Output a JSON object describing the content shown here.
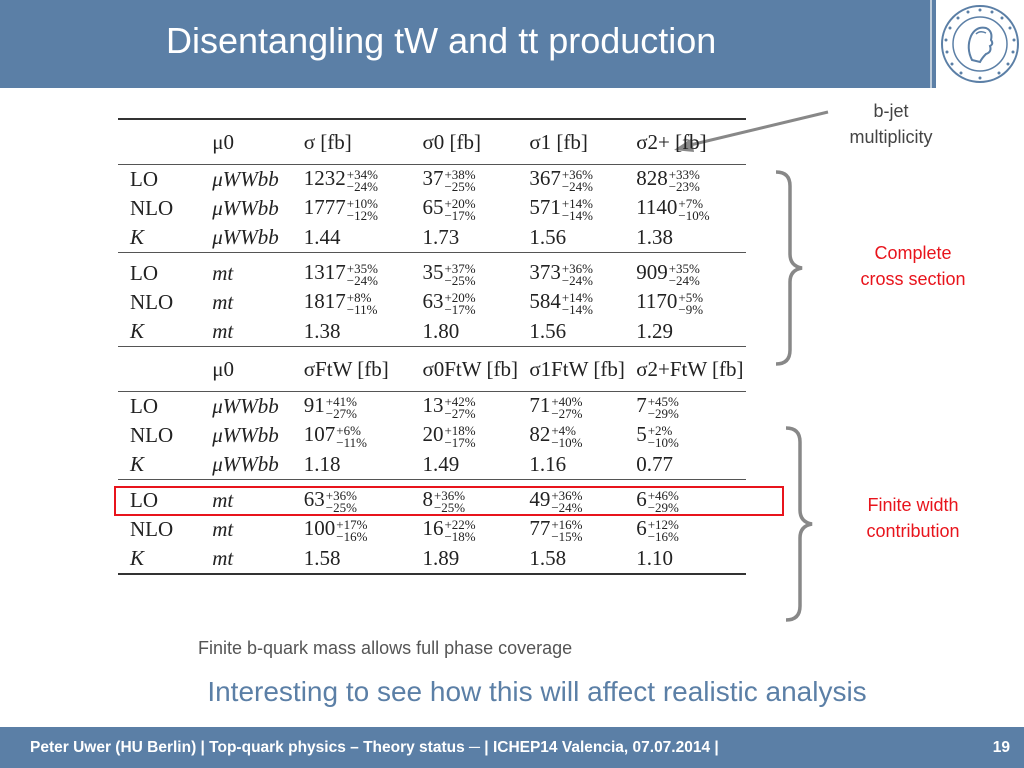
{
  "slide": {
    "title": "Disentangling tW and tt production",
    "annotations": {
      "bjet": [
        "b-jet",
        "multiplicity"
      ],
      "complete": [
        "Complete",
        "cross section"
      ],
      "finite": [
        "Finite width",
        "contribution"
      ]
    },
    "note": "Finite b-quark mass allows full phase coverage",
    "summary": "Interesting to see how this will affect realistic analysis",
    "footer": "Peter Uwer  (HU Berlin)  |  Top-quark physics – Theory status ─  |  ICHEP14 Valencia,  07.07.2014  |",
    "page": "19",
    "colors": {
      "header": "#5b7fa6",
      "accent_red": "#e8141c",
      "text": "#222222"
    }
  },
  "table": {
    "header1": [
      "",
      "μ0",
      "σ [fb]",
      "σ0 [fb]",
      "σ1 [fb]",
      "σ2+ [fb]"
    ],
    "header2": [
      "",
      "μ0",
      "σFtW [fb]",
      "σ0FtW [fb]",
      "σ1FtW [fb]",
      "σ2+FtW [fb]"
    ],
    "blocks": [
      {
        "rows": [
          {
            "order": "LO",
            "scale": "μWWbb",
            "cells": [
              {
                "v": "1232",
                "up": "+34%",
                "dn": "−24%"
              },
              {
                "v": "37",
                "up": "+38%",
                "dn": "−25%"
              },
              {
                "v": "367",
                "up": "+36%",
                "dn": "−24%"
              },
              {
                "v": "828",
                "up": "+33%",
                "dn": "−23%"
              }
            ]
          },
          {
            "order": "NLO",
            "scale": "μWWbb",
            "cells": [
              {
                "v": "1777",
                "up": "+10%",
                "dn": "−12%"
              },
              {
                "v": "65",
                "up": "+20%",
                "dn": "−17%"
              },
              {
                "v": "571",
                "up": "+14%",
                "dn": "−14%"
              },
              {
                "v": "1140",
                "up": "+7%",
                "dn": "−10%"
              }
            ]
          },
          {
            "order": "K",
            "scale": "μWWbb",
            "cells": [
              {
                "v": "1.44"
              },
              {
                "v": "1.73"
              },
              {
                "v": "1.56"
              },
              {
                "v": "1.38"
              }
            ]
          }
        ]
      },
      {
        "rows": [
          {
            "order": "LO",
            "scale": "mt",
            "cells": [
              {
                "v": "1317",
                "up": "+35%",
                "dn": "−24%"
              },
              {
                "v": "35",
                "up": "+37%",
                "dn": "−25%"
              },
              {
                "v": "373",
                "up": "+36%",
                "dn": "−24%"
              },
              {
                "v": "909",
                "up": "+35%",
                "dn": "−24%"
              }
            ]
          },
          {
            "order": "NLO",
            "scale": "mt",
            "cells": [
              {
                "v": "1817",
                "up": "+8%",
                "dn": "−11%"
              },
              {
                "v": "63",
                "up": "+20%",
                "dn": "−17%"
              },
              {
                "v": "584",
                "up": "+14%",
                "dn": "−14%"
              },
              {
                "v": "1170",
                "up": "+5%",
                "dn": "−9%"
              }
            ]
          },
          {
            "order": "K",
            "scale": "mt",
            "cells": [
              {
                "v": "1.38"
              },
              {
                "v": "1.80"
              },
              {
                "v": "1.56"
              },
              {
                "v": "1.29"
              }
            ]
          }
        ]
      },
      {
        "rows": [
          {
            "order": "LO",
            "scale": "μWWbb",
            "cells": [
              {
                "v": "91",
                "up": "+41%",
                "dn": "−27%"
              },
              {
                "v": "13",
                "up": "+42%",
                "dn": "−27%"
              },
              {
                "v": "71",
                "up": "+40%",
                "dn": "−27%"
              },
              {
                "v": "7",
                "up": "+45%",
                "dn": "−29%"
              }
            ]
          },
          {
            "order": "NLO",
            "scale": "μWWbb",
            "cells": [
              {
                "v": "107",
                "up": "+6%",
                "dn": "−11%"
              },
              {
                "v": "20",
                "up": "+18%",
                "dn": "−17%"
              },
              {
                "v": "82",
                "up": "+4%",
                "dn": "−10%"
              },
              {
                "v": "5",
                "up": "+2%",
                "dn": "−10%"
              }
            ]
          },
          {
            "order": "K",
            "scale": "μWWbb",
            "cells": [
              {
                "v": "1.18"
              },
              {
                "v": "1.49"
              },
              {
                "v": "1.16"
              },
              {
                "v": "0.77"
              }
            ]
          }
        ]
      },
      {
        "rows": [
          {
            "order": "LO",
            "scale": "mt",
            "cells": [
              {
                "v": "63",
                "up": "+36%",
                "dn": "−25%"
              },
              {
                "v": "8",
                "up": "+36%",
                "dn": "−25%"
              },
              {
                "v": "49",
                "up": "+36%",
                "dn": "−24%"
              },
              {
                "v": "6",
                "up": "+46%",
                "dn": "−29%"
              }
            ]
          },
          {
            "order": "NLO",
            "scale": "mt",
            "cells": [
              {
                "v": "100",
                "up": "+17%",
                "dn": "−16%"
              },
              {
                "v": "16",
                "up": "+22%",
                "dn": "−18%"
              },
              {
                "v": "77",
                "up": "+16%",
                "dn": "−15%"
              },
              {
                "v": "6",
                "up": "+12%",
                "dn": "−16%"
              }
            ]
          },
          {
            "order": "K",
            "scale": "mt",
            "cells": [
              {
                "v": "1.58"
              },
              {
                "v": "1.89"
              },
              {
                "v": "1.58"
              },
              {
                "v": "1.10"
              }
            ]
          }
        ]
      }
    ]
  }
}
